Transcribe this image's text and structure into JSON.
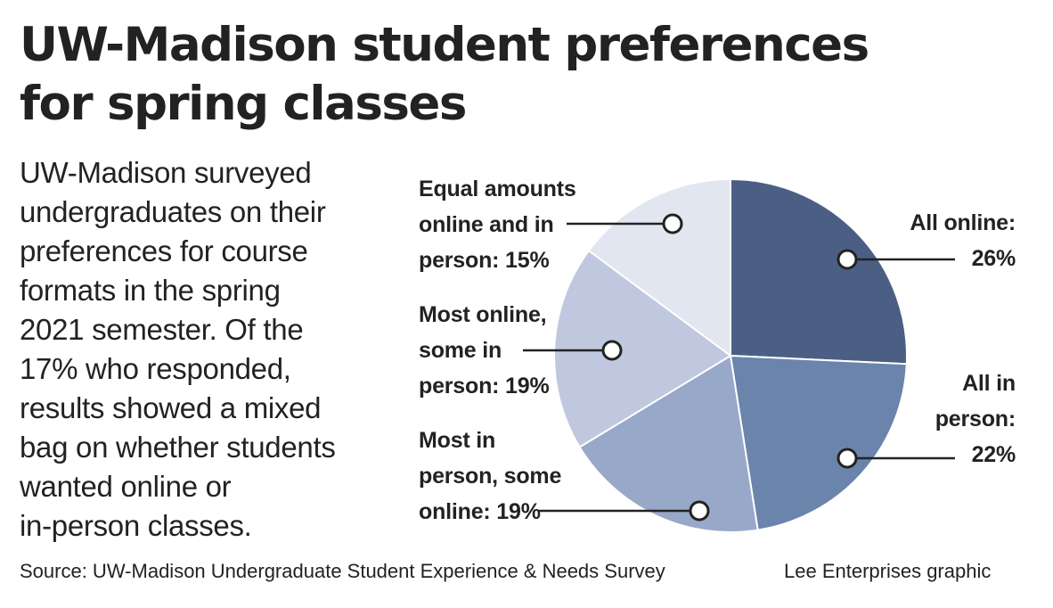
{
  "title_lines": [
    "UW-Madison student preferences",
    "for spring classes"
  ],
  "description_lines": [
    "UW-Madison surveyed",
    "undergraduates on their",
    "preferences for course",
    "formats in the spring",
    "2021 semester. Of the",
    "17% who responded,",
    "results showed a mixed",
    "bag on whether students",
    "wanted online or",
    "in-person classes."
  ],
  "source": "Source: UW-Madison Undergraduate Student Experience & Needs Survey",
  "credit": "Lee Enterprises graphic",
  "chart_data": {
    "type": "pie",
    "start_angle_deg": 0,
    "direction": "clockwise",
    "slices": [
      {
        "label_lines": [
          "All online:"
        ],
        "value_text": "26%",
        "value": 26,
        "color": "#4b5f85"
      },
      {
        "label_lines": [
          "All in",
          "person:"
        ],
        "value_text": "22%",
        "value": 22,
        "color": "#6b84ab"
      },
      {
        "label_lines": [
          "Most in",
          "person, some",
          "online:"
        ],
        "value_text": "19%",
        "value": 19,
        "color": "#97a8c9"
      },
      {
        "label_lines": [
          "Most online,",
          "some in",
          "person:"
        ],
        "value_text": "19%",
        "value": 19,
        "color": "#bfc8de"
      },
      {
        "label_lines": [
          "Equal amounts",
          "online and in",
          "person:"
        ],
        "value_text": "15%",
        "value": 15,
        "color": "#e2e6f0"
      }
    ]
  }
}
